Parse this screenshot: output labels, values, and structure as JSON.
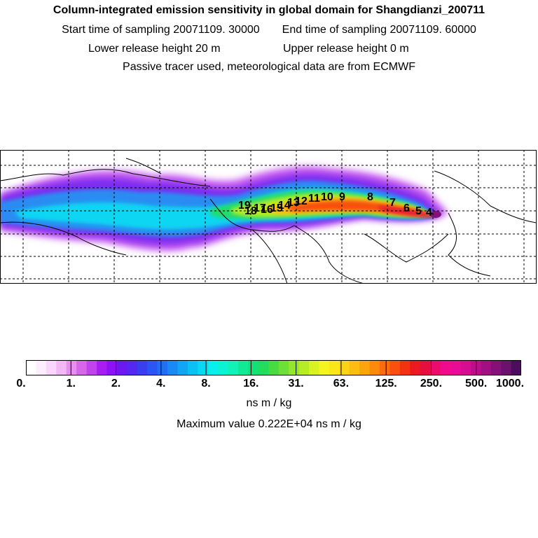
{
  "header": {
    "title": "Column-integrated emission sensitivity in global domain for Shangdianzi_200711",
    "start_time": "Start time of sampling 20071109. 30000",
    "end_time": "End time of sampling 20071109. 60000",
    "lower_height": "Lower release height   20 m",
    "upper_height": "Upper release height    0 m",
    "tracer_note": "Passive tracer used, meteorological data are from ECMWF"
  },
  "trajectory_labels": [
    "19",
    "18",
    "17",
    "16",
    "15",
    "14",
    "13",
    "12",
    "11",
    "10",
    "9",
    "8",
    "7",
    "6",
    "5",
    "4"
  ],
  "colorbar": {
    "ticks": [
      "0.",
      "1.",
      "2.",
      "4.",
      "8.",
      "16.",
      "31.",
      "63.",
      "125.",
      "250.",
      "500.",
      "1000."
    ],
    "units": "ns m / kg",
    "colors": [
      "#ffffff",
      "#fdeefd",
      "#f9d6fb",
      "#f3b6f6",
      "#e98ef0",
      "#d766ec",
      "#c242ee",
      "#a91cf2",
      "#8e12f3",
      "#6e18f0",
      "#5428ef",
      "#3a3ef0",
      "#2a56f2",
      "#1f70f5",
      "#188af5",
      "#12a4f5",
      "#0cbff4",
      "#08d8f2",
      "#08f0ee",
      "#0cf3d4",
      "#10f2b6",
      "#10e996",
      "#14e078",
      "#22dc5a",
      "#46dc40",
      "#6ce034",
      "#92e62c",
      "#b6ec26",
      "#d8f222",
      "#f4f41e",
      "#fce61a",
      "#fcd216",
      "#fcbc12",
      "#fca40e",
      "#fc8a0c",
      "#fa6c0c",
      "#f8500e",
      "#f23210",
      "#ec1a1e",
      "#e60e3c",
      "#ec0a6a",
      "#f00a8e",
      "#e60c96",
      "#d40e92",
      "#bc0e8c",
      "#a20e84",
      "#86107a",
      "#6a126e",
      "#4c0e5c"
    ]
  },
  "max_value": "Maximum value  0.222E+04 ns m / kg"
}
